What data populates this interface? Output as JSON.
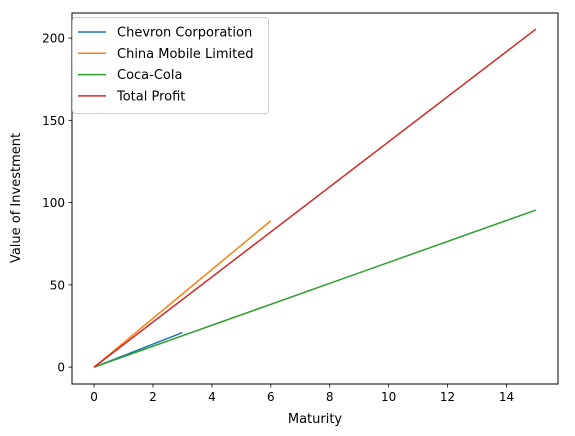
{
  "chart_data": {
    "type": "line",
    "xlabel": "Maturity",
    "ylabel": "Value of Investment",
    "xlim": [
      -0.75,
      15.75
    ],
    "ylim": [
      -10.25,
      215.25
    ],
    "xticks": [
      0,
      2,
      4,
      6,
      8,
      10,
      12,
      14
    ],
    "yticks": [
      0,
      50,
      100,
      150,
      200
    ],
    "grid": false,
    "legend_position": "top-left",
    "series": [
      {
        "name": "Chevron Corporation",
        "color": "#1f77b4",
        "x": [
          0,
          3
        ],
        "y": [
          0,
          21
        ]
      },
      {
        "name": "China Mobile Limited",
        "color": "#ff7f0e",
        "x": [
          0,
          6
        ],
        "y": [
          0,
          89
        ]
      },
      {
        "name": "Coca-Cola",
        "color": "#2ca02c",
        "x": [
          0,
          15
        ],
        "y": [
          0,
          95.5
        ]
      },
      {
        "name": "Total Profit",
        "color": "#d62728",
        "x": [
          0,
          15
        ],
        "y": [
          0,
          205.5
        ]
      }
    ]
  }
}
